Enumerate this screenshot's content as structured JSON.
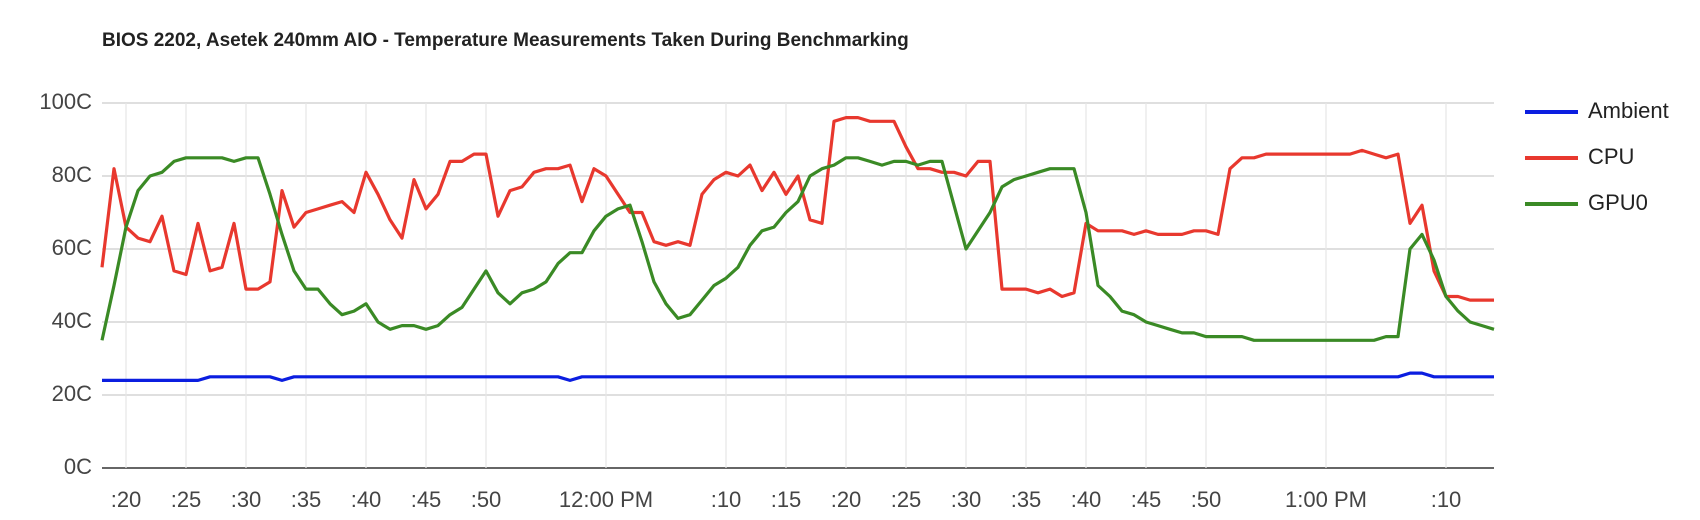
{
  "chart_data": {
    "type": "line",
    "title": "BIOS 2202, Asetek 240mm AIO - Temperature Measurements Taken During Benchmarking",
    "x": [
      "11:18",
      "11:19",
      "11:20",
      "11:21",
      "11:22",
      "11:23",
      "11:24",
      "11:25",
      "11:26",
      "11:27",
      "11:28",
      "11:29",
      "11:30",
      "11:31",
      "11:32",
      "11:33",
      "11:34",
      "11:35",
      "11:36",
      "11:37",
      "11:38",
      "11:39",
      "11:40",
      "11:41",
      "11:42",
      "11:43",
      "11:44",
      "11:45",
      "11:46",
      "11:47",
      "11:48",
      "11:49",
      "11:50",
      "11:51",
      "11:52",
      "11:53",
      "11:54",
      "11:55",
      "11:56",
      "11:57",
      "11:58",
      "11:59",
      "12:00",
      "12:01",
      "12:02",
      "12:03",
      "12:04",
      "12:05",
      "12:06",
      "12:07",
      "12:08",
      "12:09",
      "12:10",
      "12:11",
      "12:12",
      "12:13",
      "12:14",
      "12:15",
      "12:16",
      "12:17",
      "12:18",
      "12:19",
      "12:20",
      "12:21",
      "12:22",
      "12:23",
      "12:24",
      "12:25",
      "12:26",
      "12:27",
      "12:28",
      "12:29",
      "12:30",
      "12:31",
      "12:32",
      "12:33",
      "12:34",
      "12:35",
      "12:36",
      "12:37",
      "12:38",
      "12:39",
      "12:40",
      "12:41",
      "12:42",
      "12:43",
      "12:44",
      "12:45",
      "12:46",
      "12:47",
      "12:48",
      "12:49",
      "12:50",
      "12:51",
      "12:52",
      "12:53",
      "12:54",
      "12:55",
      "12:56",
      "12:57",
      "12:58",
      "12:59",
      "13:00",
      "13:01",
      "13:02",
      "13:03",
      "13:04",
      "13:05",
      "13:06",
      "13:07",
      "13:08",
      "13:09",
      "13:10",
      "13:11",
      "13:12",
      "13:13",
      "13:14"
    ],
    "series": [
      {
        "name": "Ambient",
        "color": "#0b1ee0",
        "values": [
          24,
          24,
          24,
          24,
          24,
          24,
          24,
          24,
          24,
          25,
          25,
          25,
          25,
          25,
          25,
          24,
          25,
          25,
          25,
          25,
          25,
          25,
          25,
          25,
          25,
          25,
          25,
          25,
          25,
          25,
          25,
          25,
          25,
          25,
          25,
          25,
          25,
          25,
          25,
          24,
          25,
          25,
          25,
          25,
          25,
          25,
          25,
          25,
          25,
          25,
          25,
          25,
          25,
          25,
          25,
          25,
          25,
          25,
          25,
          25,
          25,
          25,
          25,
          25,
          25,
          25,
          25,
          25,
          25,
          25,
          25,
          25,
          25,
          25,
          25,
          25,
          25,
          25,
          25,
          25,
          25,
          25,
          25,
          25,
          25,
          25,
          25,
          25,
          25,
          25,
          25,
          25,
          25,
          25,
          25,
          25,
          25,
          25,
          25,
          25,
          25,
          25,
          25,
          25,
          25,
          25,
          25,
          25,
          25,
          26,
          26,
          25,
          25,
          25,
          25,
          25,
          25
        ]
      },
      {
        "name": "CPU",
        "color": "#e8382e",
        "values": [
          55,
          82,
          66,
          63,
          62,
          69,
          54,
          53,
          67,
          54,
          55,
          67,
          49,
          49,
          51,
          76,
          66,
          70,
          71,
          72,
          73,
          70,
          81,
          75,
          68,
          63,
          79,
          71,
          75,
          84,
          84,
          86,
          86,
          69,
          76,
          77,
          81,
          82,
          82,
          83,
          73,
          82,
          80,
          75,
          70,
          70,
          62,
          61,
          62,
          61,
          75,
          79,
          81,
          80,
          83,
          76,
          81,
          75,
          80,
          68,
          67,
          95,
          96,
          96,
          95,
          95,
          95,
          88,
          82,
          82,
          81,
          81,
          80,
          84,
          84,
          49,
          49,
          49,
          48,
          49,
          47,
          48,
          67,
          65,
          65,
          65,
          64,
          65,
          64,
          64,
          64,
          65,
          65,
          64,
          82,
          85,
          85,
          86,
          86,
          86,
          86,
          86,
          86,
          86,
          86,
          87,
          86,
          85,
          86,
          67,
          72,
          54,
          47,
          47,
          46,
          46,
          46
        ]
      },
      {
        "name": "GPU0",
        "color": "#3a8a25",
        "values": [
          35,
          50,
          66,
          76,
          80,
          81,
          84,
          85,
          85,
          85,
          85,
          84,
          85,
          85,
          75,
          64,
          54,
          49,
          49,
          45,
          42,
          43,
          45,
          40,
          38,
          39,
          39,
          38,
          39,
          42,
          44,
          49,
          54,
          48,
          45,
          48,
          49,
          51,
          56,
          59,
          59,
          65,
          69,
          71,
          72,
          62,
          51,
          45,
          41,
          42,
          46,
          50,
          52,
          55,
          61,
          65,
          66,
          70,
          73,
          80,
          82,
          83,
          85,
          85,
          84,
          83,
          84,
          84,
          83,
          84,
          84,
          72,
          60,
          65,
          70,
          77,
          79,
          80,
          81,
          82,
          82,
          82,
          70,
          50,
          47,
          43,
          42,
          40,
          39,
          38,
          37,
          37,
          36,
          36,
          36,
          36,
          35,
          35,
          35,
          35,
          35,
          35,
          35,
          35,
          35,
          35,
          35,
          36,
          36,
          60,
          64,
          57,
          47,
          43,
          40,
          39,
          38
        ]
      }
    ],
    "xlim": [
      "11:18",
      "13:14"
    ],
    "xticks": [
      {
        "value": "11:20",
        "label": ":20"
      },
      {
        "value": "11:25",
        "label": ":25"
      },
      {
        "value": "11:30",
        "label": ":30"
      },
      {
        "value": "11:35",
        "label": ":35"
      },
      {
        "value": "11:40",
        "label": ":40"
      },
      {
        "value": "11:45",
        "label": ":45"
      },
      {
        "value": "11:50",
        "label": ":50"
      },
      {
        "value": "12:00",
        "label": "12:00 PM"
      },
      {
        "value": "12:10",
        "label": ":10"
      },
      {
        "value": "12:15",
        "label": ":15"
      },
      {
        "value": "12:20",
        "label": ":20"
      },
      {
        "value": "12:25",
        "label": ":25"
      },
      {
        "value": "12:30",
        "label": ":30"
      },
      {
        "value": "12:35",
        "label": ":35"
      },
      {
        "value": "12:40",
        "label": ":40"
      },
      {
        "value": "12:45",
        "label": ":45"
      },
      {
        "value": "12:50",
        "label": ":50"
      },
      {
        "value": "13:00",
        "label": "1:00 PM"
      },
      {
        "value": "13:10",
        "label": ":10"
      }
    ],
    "ylim": [
      0,
      100
    ],
    "yticks": [
      {
        "value": 0,
        "label": "0C"
      },
      {
        "value": 20,
        "label": "20C"
      },
      {
        "value": 40,
        "label": "40C"
      },
      {
        "value": 60,
        "label": "60C"
      },
      {
        "value": 80,
        "label": "80C"
      },
      {
        "value": 100,
        "label": "100C"
      }
    ],
    "grid": true,
    "legend": "right"
  }
}
